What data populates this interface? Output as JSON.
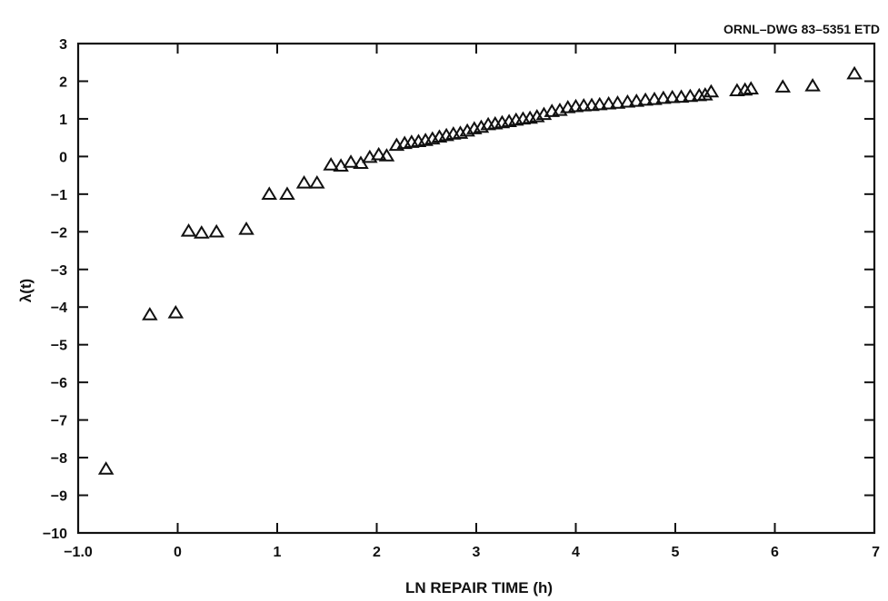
{
  "drawing_id": "ORNL–DWG 83–5351 ETD",
  "chart_data": {
    "type": "scatter",
    "xlabel": "LN REPAIR TIME (h)",
    "ylabel": "λ(t)",
    "xlim": [
      -1.0,
      7
    ],
    "ylim": [
      -10,
      3
    ],
    "x_ticks": [
      -1.0,
      0,
      1,
      2,
      3,
      4,
      5,
      6,
      7
    ],
    "x_tick_labels": [
      "−1.0",
      "0",
      "1",
      "2",
      "3",
      "4",
      "5",
      "6",
      "7"
    ],
    "y_ticks": [
      3,
      2,
      1,
      0,
      -1,
      -2,
      -3,
      -4,
      -5,
      -6,
      -7,
      -8,
      -9,
      -10
    ],
    "y_tick_labels": [
      "3",
      "2",
      "1",
      "0",
      "−1",
      "−2",
      "−3",
      "−4",
      "−5",
      "−6",
      "−7",
      "−8",
      "−9",
      "−10"
    ],
    "grid": false,
    "marker": "open-triangle",
    "series": [
      {
        "points": [
          [
            -0.72,
            -8.3
          ],
          [
            -0.28,
            -4.2
          ],
          [
            -0.02,
            -4.15
          ],
          [
            0.11,
            -1.98
          ],
          [
            0.24,
            -2.03
          ],
          [
            0.39,
            -2.0
          ],
          [
            0.69,
            -1.93
          ],
          [
            0.92,
            -1.0
          ],
          [
            1.1,
            -1.0
          ],
          [
            1.27,
            -0.7
          ],
          [
            1.4,
            -0.7
          ],
          [
            1.54,
            -0.22
          ],
          [
            1.64,
            -0.25
          ],
          [
            1.74,
            -0.15
          ],
          [
            1.84,
            -0.18
          ],
          [
            1.93,
            -0.02
          ],
          [
            2.02,
            0.05
          ],
          [
            2.1,
            0.02
          ],
          [
            2.2,
            0.3
          ],
          [
            2.28,
            0.35
          ],
          [
            2.35,
            0.38
          ],
          [
            2.42,
            0.4
          ],
          [
            2.49,
            0.43
          ],
          [
            2.56,
            0.47
          ],
          [
            2.63,
            0.52
          ],
          [
            2.7,
            0.56
          ],
          [
            2.77,
            0.6
          ],
          [
            2.84,
            0.62
          ],
          [
            2.91,
            0.68
          ],
          [
            2.98,
            0.74
          ],
          [
            3.05,
            0.78
          ],
          [
            3.12,
            0.85
          ],
          [
            3.19,
            0.87
          ],
          [
            3.26,
            0.9
          ],
          [
            3.33,
            0.93
          ],
          [
            3.4,
            0.97
          ],
          [
            3.47,
            1.0
          ],
          [
            3.54,
            1.02
          ],
          [
            3.61,
            1.06
          ],
          [
            3.68,
            1.12
          ],
          [
            3.76,
            1.2
          ],
          [
            3.84,
            1.23
          ],
          [
            3.92,
            1.3
          ],
          [
            4.0,
            1.33
          ],
          [
            4.08,
            1.35
          ],
          [
            4.16,
            1.36
          ],
          [
            4.24,
            1.38
          ],
          [
            4.33,
            1.4
          ],
          [
            4.42,
            1.42
          ],
          [
            4.52,
            1.45
          ],
          [
            4.61,
            1.47
          ],
          [
            4.7,
            1.5
          ],
          [
            4.79,
            1.52
          ],
          [
            4.88,
            1.55
          ],
          [
            4.97,
            1.57
          ],
          [
            5.06,
            1.58
          ],
          [
            5.15,
            1.6
          ],
          [
            5.24,
            1.62
          ],
          [
            5.3,
            1.64
          ],
          [
            5.36,
            1.72
          ],
          [
            5.62,
            1.75
          ],
          [
            5.7,
            1.77
          ],
          [
            5.76,
            1.8
          ],
          [
            6.08,
            1.85
          ],
          [
            6.38,
            1.88
          ],
          [
            6.8,
            2.2
          ]
        ]
      }
    ]
  }
}
